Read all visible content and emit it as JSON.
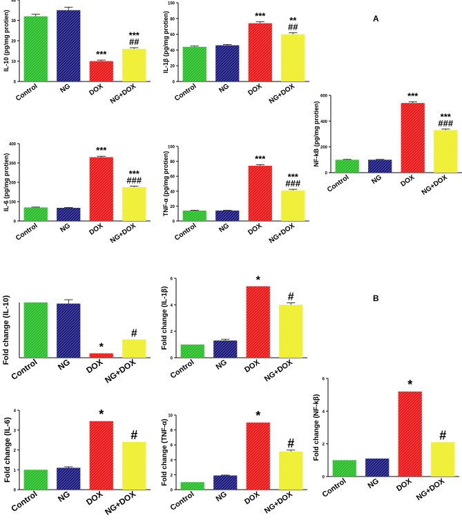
{
  "panel_labels": {
    "a": "A",
    "b": "B"
  },
  "colors": {
    "control": "#22bb22",
    "ng": "#14147a",
    "dox": "#ee1111",
    "ngdox": "#eeee22",
    "axis": "#000000"
  },
  "chart_data": [
    {
      "type": "bar",
      "panel": "A",
      "ylabel": "IL-10  (pg/mg protien)",
      "categories": [
        "Control",
        "NG",
        "DOX",
        "NG+DOX"
      ],
      "values": [
        32,
        35,
        10,
        16
      ],
      "errors": [
        1,
        1.5,
        0.5,
        0.6
      ],
      "ylim": [
        0,
        40
      ],
      "yticks": [
        0,
        10,
        20,
        30,
        40
      ],
      "tick_labels": [
        "0",
        "10",
        "20",
        "30",
        "40"
      ],
      "annotations": [
        "",
        "",
        "***",
        "***\n##"
      ]
    },
    {
      "type": "bar",
      "panel": "A",
      "ylabel": "IL-1β  (pg/mg protien)",
      "categories": [
        "Control",
        "NG",
        "DOX",
        "NG+DOX"
      ],
      "values": [
        44,
        46,
        74,
        60
      ],
      "errors": [
        1,
        1,
        2,
        2
      ],
      "ylim": [
        0,
        100
      ],
      "yticks": [
        0,
        20,
        40,
        60,
        80,
        100
      ],
      "tick_labels": [
        "0",
        "20",
        "40",
        "60",
        "80",
        "100"
      ],
      "annotations": [
        "",
        "",
        "***",
        "**\n##"
      ]
    },
    {
      "type": "bar",
      "panel": "A",
      "ylabel": "NF-kB  (pg/mg protien)",
      "categories": [
        "Control",
        "NG",
        "DOX",
        "NG+DOX"
      ],
      "values": [
        100,
        100,
        540,
        330
      ],
      "errors": [
        3,
        3,
        10,
        8
      ],
      "ylim": [
        0,
        600
      ],
      "yticks": [
        0,
        200,
        400,
        600
      ],
      "tick_labels": [
        "0",
        "200",
        "400",
        "600"
      ],
      "annotations": [
        "",
        "",
        "***",
        "***\n###"
      ]
    },
    {
      "type": "bar",
      "panel": "A",
      "ylabel": "IL-6  (pg/mg protien)",
      "categories": [
        "Control",
        "NG",
        "DOX",
        "NG+DOX"
      ],
      "values": [
        70,
        68,
        330,
        175
      ],
      "errors": [
        2,
        2,
        5,
        5
      ],
      "ylim": [
        0,
        400
      ],
      "yticks": [
        0,
        100,
        200,
        300,
        400
      ],
      "tick_labels": [
        "0",
        "100",
        "200",
        "300",
        "400"
      ],
      "annotations": [
        "",
        "",
        "***",
        "***\n###"
      ]
    },
    {
      "type": "bar",
      "panel": "A",
      "ylabel": "TNF-α  (pg/mg protien)",
      "categories": [
        "Control",
        "NG",
        "DOX",
        "NG+DOX"
      ],
      "values": [
        14,
        14,
        74,
        41
      ],
      "errors": [
        0.5,
        0.5,
        1.5,
        1.5
      ],
      "ylim": [
        0,
        100
      ],
      "yticks": [
        0,
        20,
        40,
        60,
        80,
        100
      ],
      "tick_labels": [
        "0",
        "20",
        "40",
        "60",
        "80",
        "100"
      ],
      "annotations": [
        "",
        "",
        "***",
        "***\n###"
      ]
    },
    {
      "type": "bar",
      "panel": "B",
      "ylabel": "Fold change  (IL-10)",
      "categories": [
        "Control",
        "NG",
        "DOX",
        "NG+DOX"
      ],
      "values": [
        1.0,
        0.98,
        0.08,
        0.33
      ],
      "errors": [
        0,
        0.07,
        0,
        0
      ],
      "ylim": [
        0,
        1.0
      ],
      "yticks": [],
      "tick_labels": [],
      "annotations": [
        "",
        "",
        "*",
        "#"
      ]
    },
    {
      "type": "bar",
      "panel": "B",
      "ylabel": "Fold change  (IL-1β)",
      "categories": [
        "Control",
        "NG",
        "DOX",
        "NG+DOX"
      ],
      "values": [
        1.0,
        1.3,
        5.4,
        4.0
      ],
      "errors": [
        0,
        0.1,
        0,
        0.15
      ],
      "ylim": [
        0,
        6
      ],
      "yticks": [
        0,
        2,
        4,
        6
      ],
      "tick_labels": [
        "0",
        "2",
        "4",
        "6"
      ],
      "annotations": [
        "",
        "",
        "*",
        "#"
      ]
    },
    {
      "type": "bar",
      "panel": "B",
      "ylabel": "Fold change  (NF-kβ)",
      "categories": [
        "Control",
        "NG",
        "DOX",
        "NG+DOX"
      ],
      "values": [
        1.0,
        1.1,
        5.2,
        2.1
      ],
      "errors": [
        0,
        0,
        0,
        0
      ],
      "ylim": [
        0,
        6
      ],
      "yticks": [
        0,
        2,
        4,
        6
      ],
      "tick_labels": [
        "0",
        "2",
        "4",
        "6"
      ],
      "annotations": [
        "",
        "",
        "*",
        "#"
      ]
    },
    {
      "type": "bar",
      "panel": "B",
      "ylabel": "Fold change  (IL-6)",
      "categories": [
        "Control",
        "NG",
        "DOX",
        "NG+DOX"
      ],
      "values": [
        1.0,
        1.1,
        3.45,
        2.4
      ],
      "errors": [
        0,
        0.05,
        0,
        0
      ],
      "ylim": [
        0,
        4
      ],
      "yticks": [
        0,
        1,
        2,
        3,
        4
      ],
      "tick_labels": [
        "0",
        "1",
        "2",
        "3",
        "4"
      ],
      "annotations": [
        "",
        "",
        "*",
        "#"
      ]
    },
    {
      "type": "bar",
      "panel": "B",
      "ylabel": "Fold change  (TNF-α)",
      "categories": [
        "Control",
        "NG",
        "DOX",
        "NG+DOX"
      ],
      "values": [
        1.0,
        1.9,
        9.0,
        5.1
      ],
      "errors": [
        0,
        0.05,
        0,
        0.2
      ],
      "ylim": [
        0,
        10
      ],
      "yticks": [
        0,
        2,
        4,
        6,
        8,
        10
      ],
      "tick_labels": [
        "0",
        "2",
        "4",
        "6",
        "8",
        "10"
      ],
      "annotations": [
        "",
        "",
        "*",
        "#"
      ]
    }
  ]
}
